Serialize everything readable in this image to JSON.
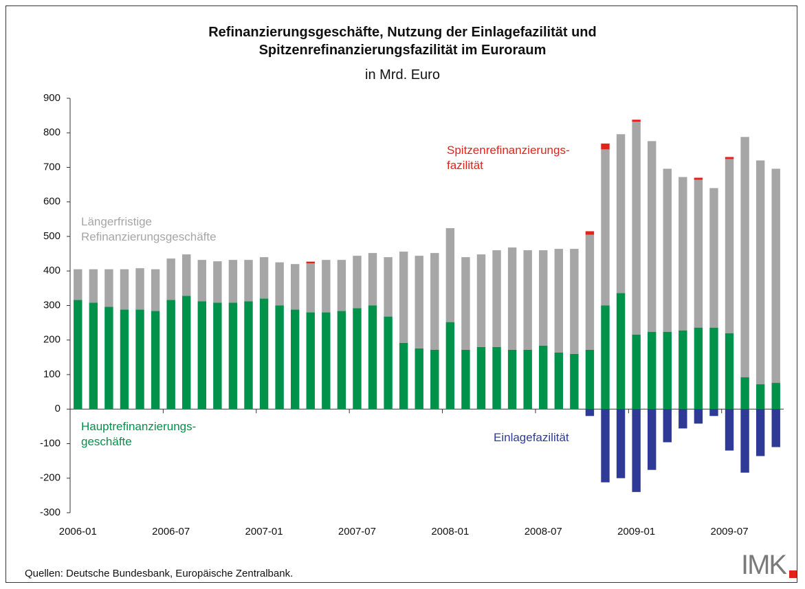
{
  "chart_data": {
    "type": "bar",
    "title": "Refinanzierungsgeschäfte, Nutzung der Einlagefazilität und\nSpitzenrefinanzierungsfazilität im Euroraum",
    "subtitle": "in Mrd. Euro",
    "source": "Quellen: Deutsche Bundesbank, Europäische Zentralbank.",
    "logo": "IMK",
    "stacked": true,
    "categories": [
      "2006-01",
      null,
      null,
      null,
      null,
      null,
      "2006-07",
      null,
      null,
      null,
      null,
      null,
      "2007-01",
      null,
      null,
      null,
      null,
      null,
      "2007-07",
      null,
      null,
      null,
      null,
      null,
      "2008-01",
      null,
      null,
      null,
      null,
      null,
      "2008-07",
      null,
      null,
      null,
      null,
      null,
      "2009-01",
      null,
      null,
      null,
      null,
      null,
      "2009-07",
      null,
      null,
      null
    ],
    "ylim": [
      -300,
      900
    ],
    "yticks": [
      -300,
      -200,
      -100,
      0,
      100,
      200,
      300,
      400,
      500,
      600,
      700,
      800,
      900
    ],
    "series": [
      {
        "name": "Hauptrefinanzierungs-\ngeschäfte",
        "color": "#00924a",
        "values": [
          316,
          308,
          296,
          288,
          288,
          284,
          316,
          328,
          312,
          308,
          308,
          312,
          320,
          300,
          288,
          280,
          280,
          284,
          292,
          300,
          268,
          192,
          176,
          172,
          252,
          172,
          180,
          180,
          172,
          172,
          184,
          164,
          160,
          172,
          300,
          336,
          216,
          224,
          224,
          228,
          236,
          236,
          220,
          92,
          72,
          76
        ]
      },
      {
        "name": "Längerfristige\nRefinanzierungsgeschäfte",
        "color": "#a6a6a6",
        "values": [
          89,
          97,
          109,
          117,
          120,
          121,
          120,
          120,
          120,
          120,
          124,
          120,
          120,
          125,
          132,
          142,
          152,
          148,
          152,
          152,
          172,
          264,
          268,
          280,
          272,
          268,
          268,
          280,
          296,
          288,
          276,
          300,
          304,
          333,
          452,
          460,
          616,
          552,
          472,
          444,
          428,
          404,
          504,
          696,
          648,
          620
        ]
      },
      {
        "name": "Spitzenrefinanzierungs-\nfazilität",
        "color": "#e2231a",
        "values": [
          0,
          0,
          0,
          0,
          0,
          0,
          0,
          0,
          0,
          0,
          0,
          0,
          0,
          0,
          0,
          5,
          0,
          0,
          0,
          0,
          0,
          0,
          0,
          0,
          0,
          0,
          0,
          0,
          0,
          0,
          0,
          0,
          0,
          10,
          17,
          0,
          6,
          0,
          0,
          0,
          6,
          0,
          6,
          0,
          0,
          0
        ]
      },
      {
        "name": "Einlagefazilität",
        "color": "#2e3a96",
        "values": [
          0,
          0,
          0,
          0,
          0,
          0,
          0,
          0,
          0,
          0,
          0,
          0,
          0,
          0,
          0,
          0,
          0,
          0,
          0,
          0,
          0,
          0,
          0,
          0,
          0,
          0,
          0,
          0,
          0,
          0,
          0,
          0,
          0,
          -20,
          -212,
          -200,
          -240,
          -176,
          -96,
          -56,
          -42,
          -20,
          -120,
          -184,
          -136,
          -110
        ]
      }
    ]
  }
}
